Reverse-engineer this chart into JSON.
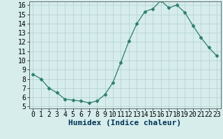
{
  "x": [
    0,
    1,
    2,
    3,
    4,
    5,
    6,
    7,
    8,
    9,
    10,
    11,
    12,
    13,
    14,
    15,
    16,
    17,
    18,
    19,
    20,
    21,
    22,
    23
  ],
  "y": [
    8.5,
    8.0,
    7.0,
    6.5,
    5.8,
    5.7,
    5.6,
    5.4,
    5.6,
    6.3,
    7.6,
    9.8,
    12.1,
    14.0,
    15.3,
    15.6,
    16.5,
    15.7,
    16.0,
    15.2,
    13.8,
    12.5,
    11.4,
    10.5
  ],
  "xlabel": "Humidex (Indice chaleur)",
  "xlim_min": -0.5,
  "xlim_max": 23.5,
  "ylim_min": 4.8,
  "ylim_max": 16.4,
  "yticks": [
    5,
    6,
    7,
    8,
    9,
    10,
    11,
    12,
    13,
    14,
    15,
    16
  ],
  "xticks": [
    0,
    1,
    2,
    3,
    4,
    5,
    6,
    7,
    8,
    9,
    10,
    11,
    12,
    13,
    14,
    15,
    16,
    17,
    18,
    19,
    20,
    21,
    22,
    23
  ],
  "line_color": "#2d7d6e",
  "marker": "D",
  "marker_size": 2.5,
  "background_color": "#d6edec",
  "grid_color": "#b0d0ce",
  "xlabel_fontsize": 8,
  "tick_fontsize": 7,
  "line_width": 0.9
}
